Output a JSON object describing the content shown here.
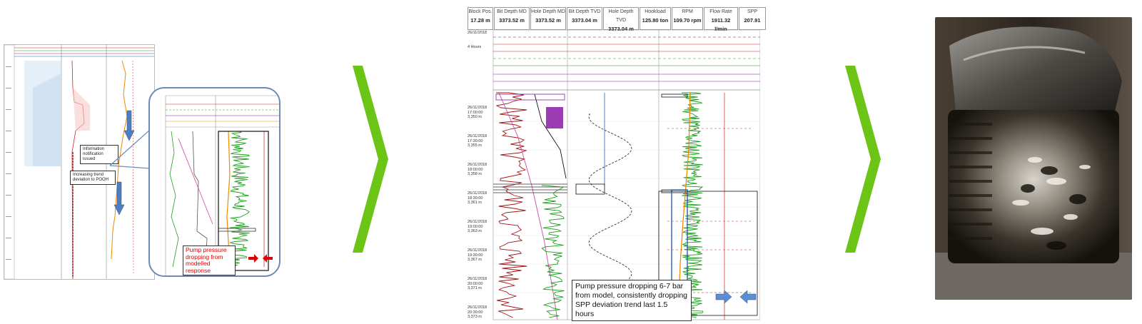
{
  "panel1": {
    "callout_info": "Information notification issued",
    "callout_trend": "Increasing trend deviation to POOH",
    "zoom_note": "Pump pressure dropping from modelled response"
  },
  "panel2": {
    "headers": [
      {
        "title": "Block Pos.",
        "value": "17.28 m"
      },
      {
        "title": "Bit Depth MD",
        "value": "3373.52 m"
      },
      {
        "title": "Hole Depth MD",
        "value": "3373.52 m"
      },
      {
        "title": "Bit Depth TVD",
        "value": "3373.04 m"
      },
      {
        "title": "Hole Depth TVD",
        "value": "3373.04 m"
      },
      {
        "title": "Hookload",
        "value": "125.80 ton"
      },
      {
        "title": "RPM",
        "value": "109.70 rpm"
      },
      {
        "title": "Flow Rate",
        "value": "1911.32 l/min"
      },
      {
        "title": "SPP",
        "value": "207.91"
      }
    ],
    "date_label": "26/11/2018",
    "window_label": "4 Hours",
    "time_labels": [
      {
        "date": "26/11/2018",
        "time": "17:00:00",
        "depth": "3,350 m"
      },
      {
        "date": "26/11/2018",
        "time": "17:30:00",
        "depth": "3,355 m"
      },
      {
        "date": "26/11/2018",
        "time": "18:00:00",
        "depth": "3,358 m"
      },
      {
        "date": "26/11/2018",
        "time": "18:30:00",
        "depth": "3,361 m"
      },
      {
        "date": "26/11/2018",
        "time": "19:00:00",
        "depth": "3,363 m"
      },
      {
        "date": "26/11/2018",
        "time": "19:30:00",
        "depth": "3,367 m"
      },
      {
        "date": "26/11/2018",
        "time": "20:00:00",
        "depth": "3,371 m"
      },
      {
        "date": "26/11/2018",
        "time": "20:30:00",
        "depth": "3,373 m"
      }
    ],
    "note": "Pump pressure dropping 6-7 bar from model, consistently dropping SPP deviation trend last 1.5 hours"
  },
  "colors": {
    "chevron": "#6cc417",
    "red": "#d81f1f",
    "green": "#1e9e1e",
    "orange": "#f08a00",
    "purple": "#8a1aa8",
    "blue": "#2a5fa8"
  }
}
